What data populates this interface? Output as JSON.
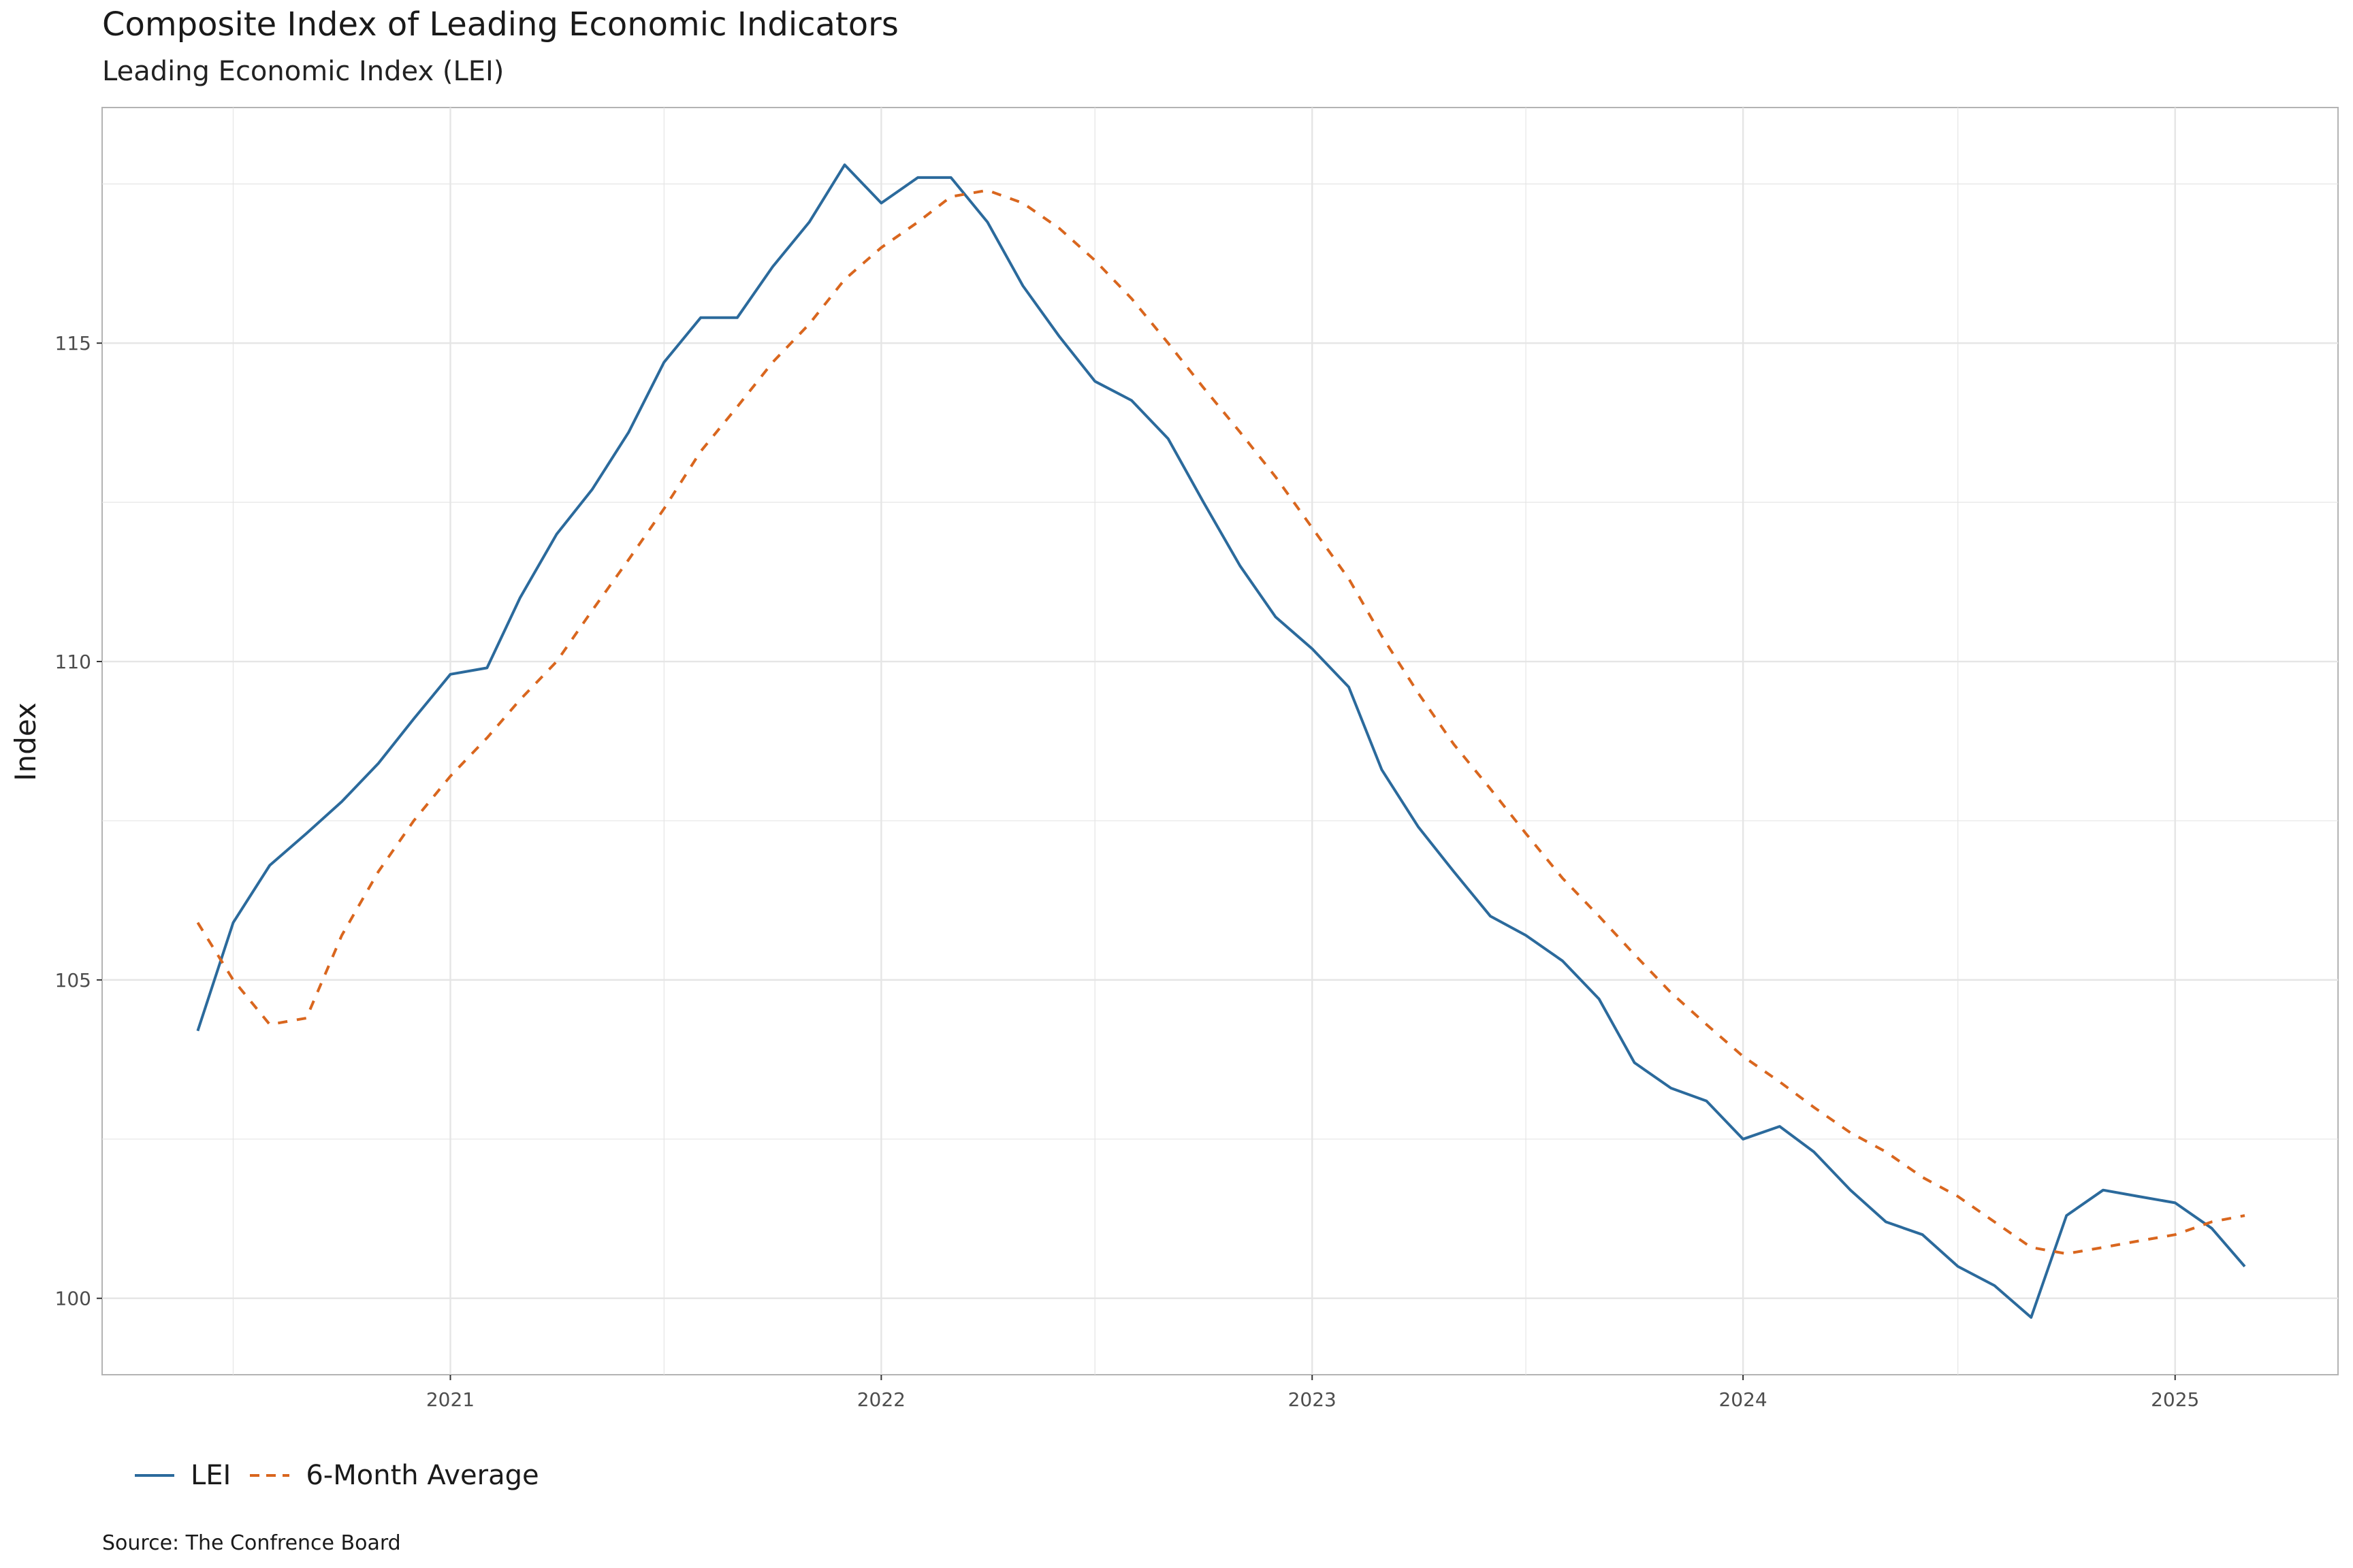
{
  "chart_data": {
    "type": "line",
    "title": "Composite Index of Leading Economic Indicators",
    "subtitle": "Leading Economic Index (LEI)",
    "ylabel": "Index",
    "xlabel": "",
    "caption": "Source: The Confrence Board",
    "ylim": [
      98.8,
      118.7
    ],
    "xlim": [
      "2020-03-12",
      "2025-05-19"
    ],
    "y_ticks": [
      100,
      105,
      110,
      115
    ],
    "x_ticks": [
      "2021",
      "2022",
      "2023",
      "2024",
      "2025"
    ],
    "grid": true,
    "legend_position": "bottom-left",
    "colors": {
      "lei": "#2b6a9c",
      "avg": "#d9661e",
      "grid": "#e5e5e5",
      "panel_border": "#b3b3b3"
    },
    "x": [
      "2020-06",
      "2020-07",
      "2020-08",
      "2020-09",
      "2020-10",
      "2020-11",
      "2020-12",
      "2021-01",
      "2021-02",
      "2021-03",
      "2021-04",
      "2021-05",
      "2021-06",
      "2021-07",
      "2021-08",
      "2021-09",
      "2021-10",
      "2021-11",
      "2021-12",
      "2022-01",
      "2022-02",
      "2022-03",
      "2022-04",
      "2022-05",
      "2022-06",
      "2022-07",
      "2022-08",
      "2022-09",
      "2022-10",
      "2022-11",
      "2022-12",
      "2023-01",
      "2023-02",
      "2023-03",
      "2023-04",
      "2023-05",
      "2023-06",
      "2023-07",
      "2023-08",
      "2023-09",
      "2023-10",
      "2023-11",
      "2023-12",
      "2024-01",
      "2024-02",
      "2024-03",
      "2024-04",
      "2024-05",
      "2024-06",
      "2024-07",
      "2024-08",
      "2024-09",
      "2024-10",
      "2024-11",
      "2024-12",
      "2025-01",
      "2025-02",
      "2025-03"
    ],
    "series": [
      {
        "name": "LEI",
        "style": "solid",
        "values": [
          104.2,
          105.9,
          106.8,
          107.3,
          107.8,
          108.4,
          109.1,
          109.8,
          109.9,
          111.0,
          112.0,
          112.7,
          113.6,
          114.7,
          115.4,
          115.4,
          116.2,
          116.9,
          117.8,
          117.2,
          117.6,
          117.6,
          116.9,
          115.9,
          115.1,
          114.4,
          114.1,
          113.5,
          112.5,
          111.5,
          110.7,
          110.2,
          109.6,
          108.3,
          107.4,
          106.7,
          106.0,
          105.7,
          105.3,
          104.7,
          103.7,
          103.3,
          103.1,
          102.5,
          102.7,
          102.3,
          101.7,
          101.2,
          101.0,
          100.5,
          100.2,
          99.7,
          101.3,
          101.7,
          101.6,
          101.5,
          101.1,
          100.5
        ]
      },
      {
        "name": "6-Month Average",
        "style": "dashed",
        "values": [
          105.9,
          105.0,
          104.3,
          104.4,
          105.7,
          106.7,
          107.5,
          108.2,
          108.8,
          109.4,
          110.0,
          110.8,
          111.6,
          112.4,
          113.3,
          114.0,
          114.7,
          115.3,
          116.0,
          116.5,
          116.9,
          117.3,
          117.4,
          117.2,
          116.8,
          116.3,
          115.7,
          115.0,
          114.3,
          113.6,
          112.9,
          112.1,
          111.3,
          110.4,
          109.5,
          108.7,
          108.0,
          107.3,
          106.6,
          106.0,
          105.4,
          104.8,
          104.3,
          103.8,
          103.4,
          103.0,
          102.6,
          102.3,
          101.9,
          101.6,
          101.2,
          100.8,
          100.7,
          100.8,
          100.9,
          101.0,
          101.2,
          101.3
        ]
      }
    ]
  }
}
